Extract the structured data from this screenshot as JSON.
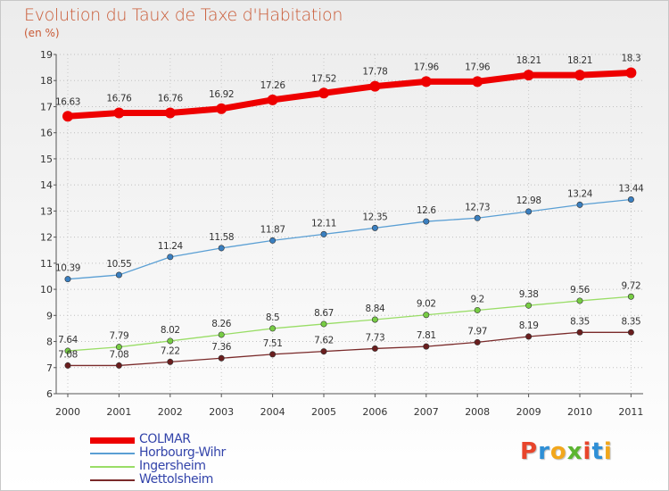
{
  "header": {
    "title": "Evolution du Taux de Taxe d'Habitation",
    "subtitle": "(en %)"
  },
  "logo": {
    "text": "Proxiti",
    "letter_colors": [
      "#e8452c",
      "#2e8fd6",
      "#f2a71c",
      "#5cb531",
      "#e8452c",
      "#2e8fd6",
      "#f2a71c"
    ]
  },
  "chart_data": {
    "type": "line",
    "title": "Evolution du Taux de Taxe d'Habitation",
    "subtitle": "(en %)",
    "xlabel": "",
    "ylabel": "",
    "x": [
      "2000",
      "2001",
      "2002",
      "2003",
      "2004",
      "2005",
      "2006",
      "2007",
      "2008",
      "2009",
      "2010",
      "2011"
    ],
    "ylim": [
      6,
      19
    ],
    "yticks": [
      6,
      7,
      8,
      9,
      10,
      11,
      12,
      13,
      14,
      15,
      16,
      17,
      18,
      19
    ],
    "grid": true,
    "legend_position": "bottom-left",
    "series": [
      {
        "name": "COLMAR",
        "color": "#ee0000",
        "thick": true,
        "values": [
          16.63,
          16.76,
          16.76,
          16.92,
          17.26,
          17.52,
          17.78,
          17.96,
          17.96,
          18.21,
          18.21,
          18.3
        ],
        "labels": [
          "16.63",
          "16.76",
          "16.76",
          "16.92",
          "17.26",
          "17.52",
          "17.78",
          "17.96",
          "17.96",
          "18.21",
          "18.21",
          "18.3"
        ]
      },
      {
        "name": "Horbourg-Wihr",
        "color": "#5a9fd4",
        "marker": "#3a7fc0",
        "values": [
          10.39,
          10.55,
          11.24,
          11.58,
          11.87,
          12.11,
          12.35,
          12.6,
          12.73,
          12.98,
          13.24,
          13.44
        ],
        "labels": [
          "10.39",
          "10.55",
          "11.24",
          "11.58",
          "11.87",
          "12.11",
          "12.35",
          "12.6",
          "12.73",
          "12.98",
          "13.24",
          "13.44"
        ]
      },
      {
        "name": "Ingersheim",
        "color": "#99dd66",
        "marker": "#77cc44",
        "values": [
          7.64,
          7.79,
          8.02,
          8.26,
          8.5,
          8.67,
          8.84,
          9.02,
          9.2,
          9.38,
          9.56,
          9.72
        ],
        "labels": [
          "7.64",
          "7.79",
          "8.02",
          "8.26",
          "8.5",
          "8.67",
          "8.84",
          "9.02",
          "9.2",
          "9.38",
          "9.56",
          "9.72"
        ]
      },
      {
        "name": "Wettolsheim",
        "color": "#7a2a2a",
        "marker": "#6a1e1e",
        "values": [
          7.08,
          7.08,
          7.22,
          7.36,
          7.51,
          7.62,
          7.73,
          7.81,
          7.97,
          8.19,
          8.35,
          8.35
        ],
        "labels": [
          "7.08",
          "7.08",
          "7.22",
          "7.36",
          "7.51",
          "7.62",
          "7.73",
          "7.81",
          "7.97",
          "8.19",
          "8.35",
          "8.35"
        ]
      }
    ]
  }
}
